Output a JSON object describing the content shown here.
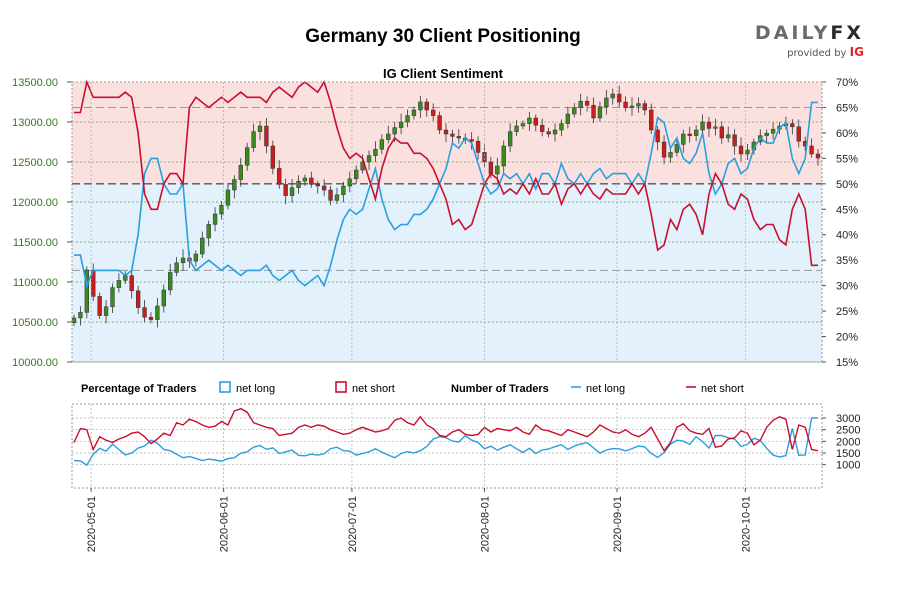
{
  "title": "Germany 30 Client Positioning",
  "subtitle": "IG Client Sentiment",
  "brand": {
    "logo_prefix": "DAILY",
    "logo_suffix": "FX",
    "provided_by": "provided by",
    "provider": "IG"
  },
  "colors": {
    "net_long": "#2a9fe0",
    "net_short": "#c8102e",
    "bull_candle": "#3a8a1f",
    "bear_candle": "#c81e1e",
    "short_zone": "#fbe0e0",
    "long_zone": "#e2f1fb",
    "price_tick": "#2e7d1a"
  },
  "legend": {
    "pct_title": "Percentage of Traders",
    "pct_long": "net long",
    "pct_short": "net short",
    "num_title": "Number of Traders",
    "num_long": "net long",
    "num_short": "net short"
  },
  "chart_data": {
    "type": "line",
    "x_dates": [
      "2020-05-01",
      "2020-06-01",
      "2020-07-01",
      "2020-08-01",
      "2020-09-01",
      "2020-10-01"
    ],
    "price_axis": {
      "range": [
        10000,
        13500
      ],
      "ticks": [
        "10000.00",
        "10500.00",
        "11000.00",
        "11500.00",
        "12000.00",
        "12500.00",
        "13000.00",
        "13500.00"
      ]
    },
    "pct_axis": {
      "range": [
        15,
        70
      ],
      "ticks": [
        "15%",
        "20%",
        "25%",
        "30%",
        "35%",
        "40%",
        "45%",
        "50%",
        "55%",
        "60%",
        "65%",
        "70%"
      ],
      "reference_lines": [
        65,
        50,
        33
      ]
    },
    "count_axis": {
      "range": [
        0,
        3600
      ],
      "ticks": [
        "1000",
        "1500",
        "2000",
        "2500",
        "3000"
      ]
    },
    "price": [
      10550,
      10620,
      11150,
      10820,
      10580,
      10690,
      10930,
      11020,
      11080,
      10890,
      10680,
      10560,
      10530,
      10700,
      10900,
      11120,
      11240,
      11300,
      11260,
      11350,
      11550,
      11720,
      11850,
      11960,
      12150,
      12280,
      12460,
      12680,
      12880,
      12950,
      12700,
      12420,
      12220,
      12080,
      12180,
      12260,
      12300,
      12220,
      12200,
      12150,
      12020,
      12090,
      12200,
      12290,
      12400,
      12500,
      12580,
      12660,
      12780,
      12850,
      12930,
      13000,
      13080,
      13150,
      13250,
      13150,
      13080,
      12900,
      12850,
      12820,
      12800,
      12780,
      12760,
      12620,
      12500,
      12350,
      12450,
      12700,
      12880,
      12950,
      12980,
      13050,
      12960,
      12880,
      12850,
      12900,
      12980,
      13100,
      13180,
      13260,
      13210,
      13050,
      13190,
      13300,
      13350,
      13250,
      13180,
      13200,
      13230,
      13150,
      12900,
      12750,
      12560,
      12620,
      12720,
      12850,
      12830,
      12900,
      13000,
      12920,
      12940,
      12800,
      12840,
      12700,
      12600,
      12650,
      12750,
      12830,
      12860,
      12910,
      12950,
      12980,
      12940,
      12760,
      12700,
      12600,
      12550
    ],
    "net_long_pct": [
      36,
      36,
      30,
      33,
      33,
      33,
      33,
      33,
      32,
      33,
      40,
      52,
      55,
      55,
      50,
      48,
      48,
      50,
      35,
      33,
      34,
      35,
      34,
      33,
      34,
      33,
      32,
      33,
      33,
      33,
      34,
      32,
      31,
      32,
      33,
      31,
      30,
      31,
      32,
      30,
      34,
      39,
      43,
      45,
      44,
      45,
      49,
      53,
      47,
      43,
      41,
      42,
      42,
      44,
      44,
      45,
      47,
      50,
      53,
      58,
      57,
      59,
      58,
      54,
      50,
      48,
      49,
      52,
      51,
      52,
      50,
      52,
      49,
      52,
      52,
      50,
      54,
      51,
      50,
      52,
      50,
      52,
      53,
      51,
      52,
      52,
      52,
      50,
      52,
      50,
      56,
      63,
      62,
      57,
      59,
      55,
      54,
      56,
      60,
      52,
      48,
      50,
      54,
      55,
      52,
      53,
      57,
      59,
      58,
      58,
      61,
      62,
      55,
      52,
      55,
      66,
      66
    ],
    "net_short_pct": [
      64,
      64,
      70,
      67,
      67,
      67,
      67,
      67,
      68,
      67,
      60,
      48,
      45,
      45,
      50,
      52,
      52,
      50,
      65,
      67,
      66,
      65,
      66,
      67,
      66,
      67,
      68,
      67,
      67,
      67,
      66,
      68,
      69,
      68,
      67,
      69,
      70,
      69,
      68,
      70,
      66,
      61,
      57,
      55,
      56,
      55,
      51,
      47,
      53,
      57,
      59,
      58,
      58,
      56,
      56,
      55,
      53,
      50,
      47,
      42,
      43,
      41,
      42,
      46,
      50,
      52,
      51,
      48,
      49,
      48,
      50,
      48,
      51,
      48,
      48,
      50,
      46,
      49,
      50,
      48,
      50,
      48,
      47,
      49,
      48,
      48,
      48,
      50,
      48,
      50,
      44,
      37,
      38,
      43,
      41,
      45,
      46,
      44,
      40,
      48,
      52,
      50,
      46,
      45,
      48,
      47,
      43,
      41,
      42,
      42,
      39,
      38,
      45,
      48,
      45,
      34,
      34
    ],
    "net_long_count": [
      1180,
      1160,
      980,
      1450,
      1700,
      1580,
      1880,
      1650,
      1420,
      1500,
      1710,
      1800,
      2050,
      1920,
      1650,
      1600,
      1450,
      1300,
      1350,
      1270,
      1180,
      1240,
      1200,
      1150,
      1260,
      1300,
      1490,
      1550,
      1750,
      1820,
      1660,
      1720,
      1480,
      1550,
      1620,
      1400,
      1380,
      1450,
      1410,
      1460,
      1690,
      1750,
      1600,
      1580,
      1410,
      1480,
      1550,
      1680,
      1540,
      1410,
      1300,
      1480,
      1560,
      1500,
      1600,
      1780,
      2100,
      2200,
      2150,
      2010,
      1970,
      2240,
      2050,
      1950,
      1680,
      1790,
      1620,
      1750,
      1850,
      1680,
      1520,
      1700,
      1480,
      1630,
      1670,
      1770,
      1860,
      1650,
      1800,
      1890,
      1940,
      1720,
      1500,
      1630,
      1690,
      1680,
      1590,
      1690,
      1800,
      1760,
      1480,
      1310,
      1520,
      1880,
      2050,
      2010,
      1870,
      2200,
      1990,
      1710,
      2250,
      2250,
      2150,
      2100,
      1780,
      1870,
      2130,
      2040,
      1700,
      1410,
      1330,
      1390,
      2550,
      1400,
      1420,
      3000,
      3000
    ],
    "net_short_count": [
      1950,
      2550,
      2500,
      1650,
      2200,
      2050,
      1950,
      2100,
      2200,
      2350,
      2400,
      2200,
      1900,
      2100,
      2350,
      2250,
      2800,
      2700,
      2950,
      2850,
      2700,
      2600,
      2650,
      2850,
      2700,
      3300,
      3400,
      3250,
      2800,
      2700,
      2600,
      2550,
      2250,
      2300,
      2350,
      2600,
      2700,
      2600,
      2700,
      2650,
      2500,
      2400,
      2300,
      2350,
      2500,
      2600,
      2500,
      2400,
      2450,
      2550,
      2900,
      3000,
      2800,
      2700,
      3050,
      2700,
      2550,
      2250,
      2200,
      2400,
      2500,
      2300,
      2250,
      2300,
      2600,
      2400,
      2550,
      2500,
      2450,
      2600,
      2400,
      2300,
      2700,
      2500,
      2450,
      2350,
      2250,
      2500,
      2400,
      2300,
      2200,
      2400,
      2700,
      2550,
      2400,
      2350,
      2500,
      2300,
      2200,
      2350,
      2600,
      2100,
      1600,
      1950,
      2600,
      2750,
      2450,
      2350,
      2300,
      2550,
      1750,
      1800,
      2100,
      2150,
      2450,
      2350,
      1850,
      2050,
      2600,
      2900,
      3050,
      2950,
      1650,
      2700,
      2600,
      1650,
      1600
    ]
  }
}
